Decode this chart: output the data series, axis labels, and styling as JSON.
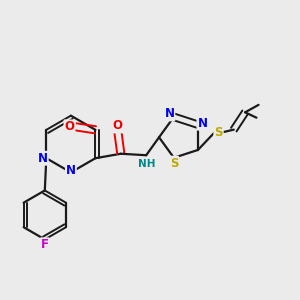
{
  "background_color": "#ebebeb",
  "bond_color": "#1a1a1a",
  "atom_colors": {
    "N": "#0000ee",
    "O": "#ee0000",
    "S": "#bbaa00",
    "F": "#cc00cc",
    "C": "#1a1a1a",
    "NH": "#008888"
  },
  "figsize": [
    3.0,
    3.0
  ],
  "dpi": 100
}
